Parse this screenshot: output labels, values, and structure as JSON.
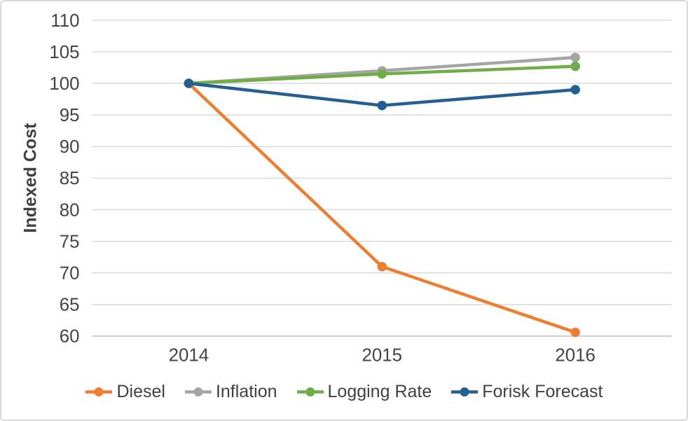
{
  "chart_data": {
    "type": "line",
    "ylabel": "Indexed Cost",
    "xlabel": "",
    "categories": [
      "2014",
      "2015",
      "2016"
    ],
    "series": [
      {
        "name": "Diesel",
        "color": "#ED7D31",
        "values": [
          100,
          71,
          60.6
        ]
      },
      {
        "name": "Inflation",
        "color": "#A5A5A5",
        "values": [
          100,
          102,
          104.1
        ]
      },
      {
        "name": "Logging Rate",
        "color": "#70AD47",
        "values": [
          100,
          101.5,
          102.7
        ]
      },
      {
        "name": "Forisk Forecast",
        "color": "#255E91",
        "values": [
          100,
          96.5,
          99
        ]
      }
    ],
    "ylim": [
      60,
      110
    ],
    "ytick_step": 5,
    "grid": true,
    "legend_position": "bottom",
    "marker": "circle"
  },
  "colors": {
    "grid": "#D9D9D9",
    "axis_line": "#BFBFBF",
    "tick_text": "#444444",
    "border": "#D9D9D9",
    "background": "#FFFFFF"
  }
}
